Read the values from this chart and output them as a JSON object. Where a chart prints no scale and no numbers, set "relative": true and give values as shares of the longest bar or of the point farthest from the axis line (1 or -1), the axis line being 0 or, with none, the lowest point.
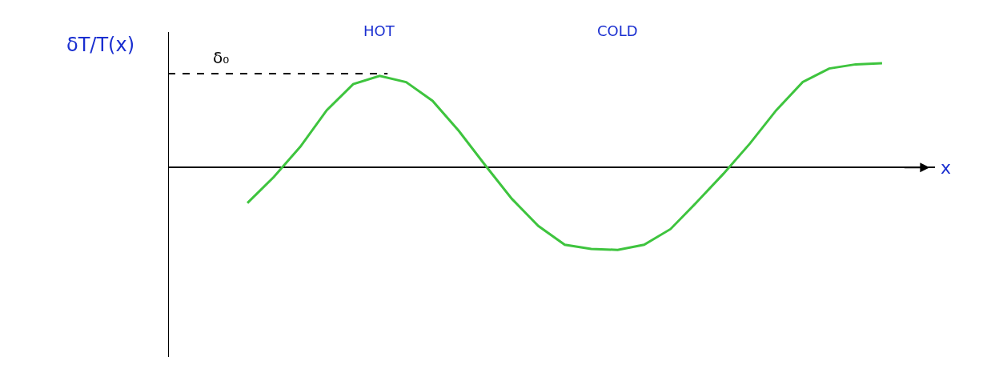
{
  "chart_data": {
    "type": "line",
    "relative": true,
    "ylabel": "δT/T(x)",
    "xlabel": "x",
    "categories": [
      null,
      null,
      null,
      null,
      null,
      null,
      null,
      null,
      null,
      null,
      null,
      null,
      null,
      null,
      null,
      null,
      null,
      null,
      null,
      null,
      null,
      null,
      null,
      null,
      null,
      null,
      null,
      null,
      null
    ],
    "series": [
      {
        "color": "#3ec43e",
        "values": [
          null,
          null,
          null,
          -0.34,
          -0.09,
          0.2,
          0.55,
          0.8,
          0.88,
          0.82,
          0.64,
          0.35,
          0.02,
          -0.3,
          -0.56,
          -0.74,
          -0.78,
          -0.79,
          -0.74,
          -0.59,
          -0.33,
          -0.06,
          0.23,
          0.55,
          0.82,
          0.95,
          0.99,
          1,
          null
        ]
      }
    ],
    "ref_lines": [
      {
        "axis": "y",
        "value": 0.9,
        "label": "δ₀",
        "color": "#000000",
        "line_style": "dashed"
      }
    ],
    "annotations": [
      "HOT",
      "COLD"
    ],
    "legend": false,
    "marker": "none",
    "line_style": "solid"
  }
}
